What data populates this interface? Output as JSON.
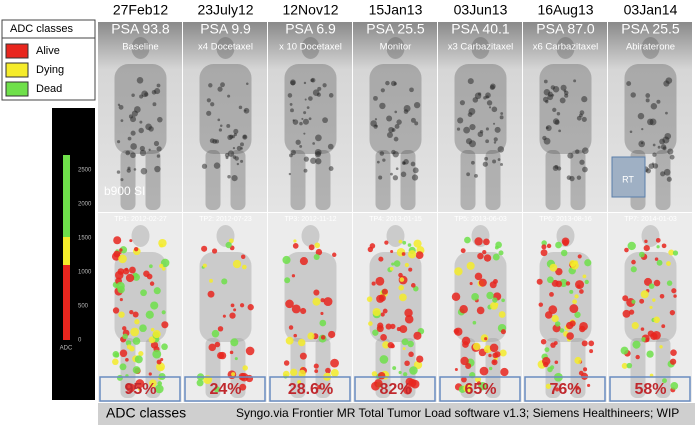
{
  "legend": {
    "title": "ADC classes",
    "items": [
      {
        "label": "Alive",
        "color": "#e8261e"
      },
      {
        "label": "Dying",
        "color": "#f5ec2a"
      },
      {
        "label": "Dead",
        "color": "#6fe04a"
      }
    ]
  },
  "colorbar": {
    "ticks": [
      "2500",
      "2000",
      "1500",
      "1000",
      "500",
      "0"
    ],
    "label": "ADC"
  },
  "panels": [
    {
      "date": "27Feb12",
      "psa": "PSA 93.8",
      "treatment": "Baseline",
      "timepoint": "TP1: 2012-02-27",
      "tumor_load": "95%"
    },
    {
      "date": "23July12",
      "psa": "PSA 9.9",
      "treatment": "x4 Docetaxel",
      "timepoint": "TP2: 2012-07-23",
      "tumor_load": "24%"
    },
    {
      "date": "12Nov12",
      "psa": "PSA 6.9",
      "treatment": "x 10 Docetaxel",
      "timepoint": "TP3: 2012-11-12",
      "tumor_load": "28.6%"
    },
    {
      "date": "15Jan13",
      "psa": "PSA 25.5",
      "treatment": "Monitor",
      "timepoint": "TP4: 2013-01-15",
      "tumor_load": "82%"
    },
    {
      "date": "03Jun13",
      "psa": "PSA 40.1",
      "treatment": "x3 Carbazitaxel",
      "timepoint": "TP5: 2013-06-03",
      "tumor_load": "65%"
    },
    {
      "date": "16Aug13",
      "psa": "PSA 87.0",
      "treatment": "x6 Carbazitaxel",
      "timepoint": "TP6: 2013-08-16",
      "tumor_load": "76%"
    },
    {
      "date": "03Jan14",
      "psa": "PSA 25.5",
      "treatment": "Abiraterone",
      "timepoint": "TP7: 2014-01-03",
      "tumor_load": "58%"
    }
  ],
  "overlay_labels": {
    "b900": "b900 SI",
    "rt": "RT"
  },
  "footer": {
    "label": "ADC classes",
    "credit": "Syngo.via Frontier MR Total Tumor Load software v1.3; Siemens Healthineers; WIP"
  }
}
